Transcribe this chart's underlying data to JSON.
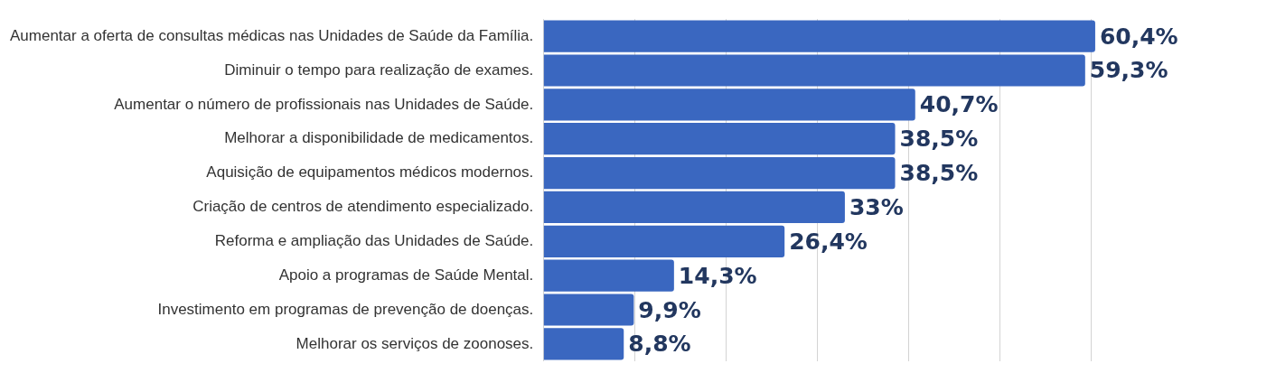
{
  "chart_data": {
    "type": "bar",
    "orientation": "horizontal",
    "categories": [
      "Aumentar a oferta de consultas médicas nas Unidades de Saúde da Família.",
      "Diminuir o tempo para realização de exames.",
      "Aumentar o número de profissionais nas Unidades de Saúde.",
      "Melhorar a disponibilidade de medicamentos.",
      "Aquisição de equipamentos médicos modernos.",
      "Criação de centros de atendimento especializado.",
      "Reforma e ampliação das Unidades de Saúde.",
      "Apoio a programas de Saúde Mental.",
      "Investimento em programas de prevenção de doenças.",
      "Melhorar os serviços de zoonoses."
    ],
    "values": [
      60.4,
      59.3,
      40.7,
      38.5,
      38.5,
      33,
      26.4,
      14.3,
      9.9,
      8.8
    ],
    "value_labels": [
      "60,4%",
      "59,3%",
      "40,7%",
      "38,5%",
      "38,5%",
      "33%",
      "26,4%",
      "14,3%",
      "9,9%",
      "8,8%"
    ],
    "color": "#3a67c0",
    "xticks": [
      {
        "value": 0,
        "label": null
      },
      {
        "value": 10,
        "label": null
      },
      {
        "value": 20,
        "label": null
      },
      {
        "value": 30,
        "label": null
      },
      {
        "value": 40,
        "label": null
      },
      {
        "value": 50,
        "label": null
      },
      {
        "value": 60,
        "label": null
      }
    ],
    "grid": "x",
    "legend": false,
    "tick_labels": "y"
  }
}
